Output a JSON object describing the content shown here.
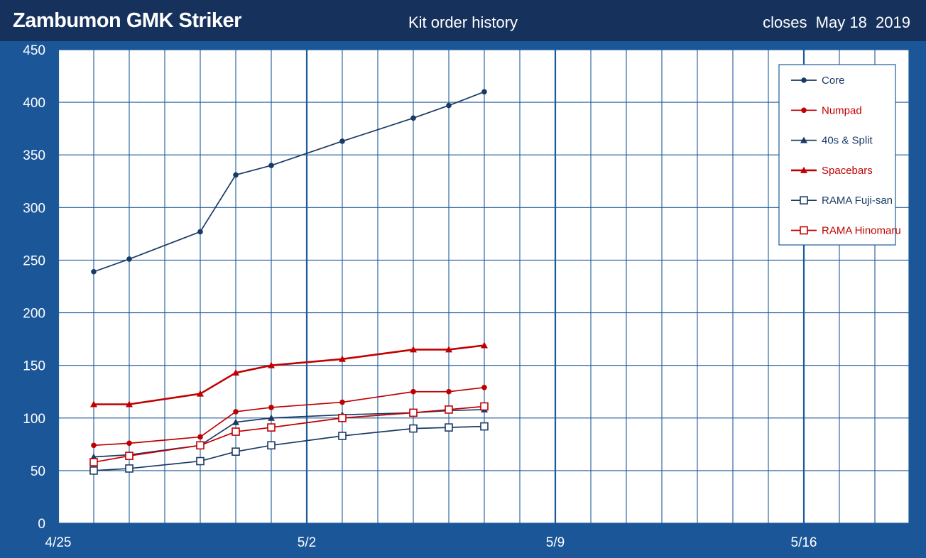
{
  "header": {
    "left_title": "Zambumon GMK Striker",
    "center_title": "Kit order history",
    "right_text": "closes  May 18  2019"
  },
  "colors": {
    "background": "#1b5798",
    "header": "#16325c",
    "plot": "#ffffff",
    "grid": "#1d5a98",
    "navy": "#1a3a66",
    "red": "#c00000"
  },
  "chart_data": {
    "type": "line",
    "title": "Kit order history",
    "xlabel": "",
    "ylabel": "",
    "ylim": [
      0,
      450
    ],
    "yticks": [
      0,
      50,
      100,
      150,
      200,
      250,
      300,
      350,
      400,
      450
    ],
    "xlim": [
      "4/25",
      "5/20"
    ],
    "xtick_labels": [
      "4/25",
      "5/2",
      "5/9",
      "5/16"
    ],
    "grid": true,
    "legend_position": "top-right",
    "x": [
      "4/26",
      "4/27",
      "4/29",
      "4/30",
      "5/1",
      "5/3",
      "5/5",
      "5/6",
      "5/7"
    ],
    "series": [
      {
        "name": "Core",
        "color": "#1a3a66",
        "marker": "circle",
        "values": [
          239,
          251,
          277,
          331,
          340,
          363,
          385,
          397,
          410
        ]
      },
      {
        "name": "Numpad",
        "color": "#c00000",
        "marker": "circle",
        "values": [
          74,
          76,
          82,
          106,
          110,
          115,
          125,
          125,
          129
        ]
      },
      {
        "name": "40s & Split",
        "color": "#1a3a66",
        "marker": "triangle",
        "values": [
          63,
          65,
          74,
          96,
          100,
          103,
          105,
          107,
          108
        ]
      },
      {
        "name": "Spacebars",
        "color": "#c00000",
        "marker": "triangle",
        "values": [
          113,
          113,
          123,
          143,
          150,
          156,
          165,
          165,
          169
        ]
      },
      {
        "name": "RAMA Fuji-san",
        "color": "#1a3a66",
        "marker": "square",
        "values": [
          50,
          52,
          59,
          68,
          74,
          83,
          90,
          91,
          92
        ]
      },
      {
        "name": "RAMA Hinomaru",
        "color": "#c00000",
        "marker": "square",
        "values": [
          58,
          64,
          74,
          87,
          91,
          100,
          105,
          108,
          111
        ]
      }
    ]
  }
}
